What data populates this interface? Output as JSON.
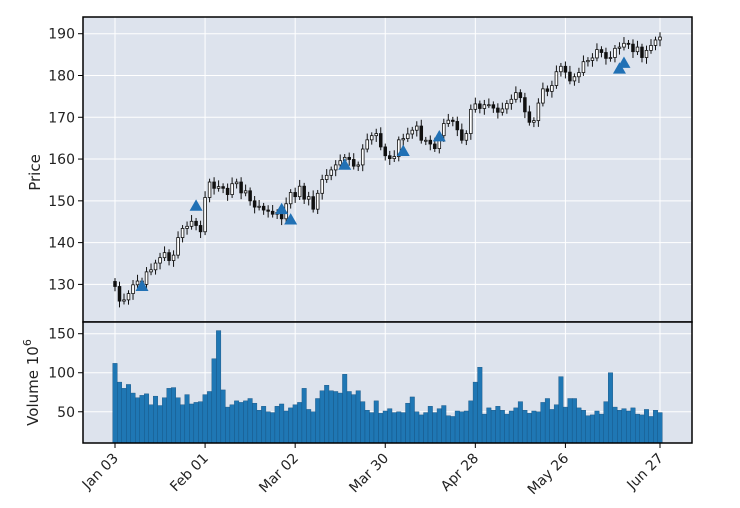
{
  "chart_data": {
    "type": "candlestick",
    "colors": {
      "panel_bg": "#dde3ed",
      "grid": "#ffffff",
      "axis": "#000000",
      "candle_edge": "#111111",
      "candle_up_fill": "#ffffff",
      "candle_down_fill": "#111111",
      "marker": "#2171b5",
      "volume_fill": "#1f77b4",
      "volume_edge": "#14507f"
    },
    "x_tick_labels": [
      "Jan 03",
      "Feb 01",
      "Mar 02",
      "Mar 30",
      "Apr 28",
      "May 26",
      "Jun 27"
    ],
    "x_tick_indices": [
      0,
      20,
      40,
      60,
      80,
      100,
      121
    ],
    "price_panel": {
      "ylabel": "Price",
      "ylim": [
        121,
        194
      ],
      "yticks": [
        130,
        140,
        150,
        160,
        170,
        180,
        190
      ]
    },
    "volume_panel": {
      "ylabel": "Volume",
      "scale_label": "10",
      "scale_exp": "6",
      "ylim": [
        10,
        165
      ],
      "yticks": [
        50,
        100,
        150
      ]
    },
    "series": {
      "close": [
        129.5,
        126.0,
        126.3,
        127.8,
        129.9,
        130.8,
        130.0,
        133.0,
        133.5,
        135.1,
        136.4,
        137.6,
        135.7,
        137.0,
        141.2,
        143.4,
        143.9,
        145.1,
        144.1,
        142.6,
        150.8,
        154.5,
        153.0,
        153.4,
        153.0,
        151.5,
        154.1,
        154.5,
        151.9,
        152.4,
        150.0,
        148.5,
        148.7,
        147.8,
        147.5,
        146.8,
        147.2,
        145.7,
        149.3,
        152.0,
        151.0,
        153.5,
        150.4,
        151.0,
        148.0,
        151.8,
        155.1,
        156.1,
        157.4,
        158.6,
        159.6,
        160.4,
        159.9,
        158.3,
        158.6,
        162.4,
        164.6,
        165.6,
        166.1,
        162.9,
        160.8,
        160.1,
        160.6,
        164.6,
        164.9,
        166.0,
        166.9,
        167.9,
        164.5,
        164.5,
        163.6,
        162.5,
        165.6,
        168.5,
        169.3,
        169.0,
        167.0,
        164.5,
        166.1,
        171.9,
        173.2,
        172.1,
        173.0,
        173.0,
        172.2,
        171.2,
        172.0,
        173.3,
        174.3,
        175.9,
        174.7,
        171.3,
        168.8,
        169.2,
        173.4,
        176.8,
        176.2,
        177.6,
        180.9,
        182.2,
        180.8,
        178.7,
        179.7,
        180.7,
        183.3,
        183.6,
        184.2,
        186.2,
        185.5,
        184.1,
        184.3,
        186.5,
        186.8,
        187.7,
        187.5,
        185.7,
        186.8,
        184.3,
        186.0,
        187.2,
        188.5,
        189.2
      ],
      "volume": [
        112,
        88,
        80,
        85,
        74,
        68,
        71,
        73,
        59,
        70,
        58,
        68,
        80,
        81,
        68,
        59,
        72,
        60,
        62,
        63,
        72,
        76,
        118,
        154,
        78,
        56,
        59,
        64,
        62,
        64,
        67,
        61,
        52,
        57,
        50,
        49,
        57,
        60,
        51,
        55,
        59,
        62,
        80,
        53,
        50,
        67,
        77,
        84,
        77,
        76,
        74,
        98,
        76,
        72,
        77,
        63,
        52,
        49,
        64,
        48,
        51,
        54,
        49,
        50,
        49,
        61,
        69,
        50,
        46,
        49,
        57,
        49,
        54,
        58,
        45,
        44,
        51,
        50,
        51,
        64,
        88,
        107,
        47,
        55,
        52,
        57,
        52,
        47,
        51,
        55,
        63,
        52,
        48,
        51,
        50,
        62,
        67,
        53,
        59,
        95,
        56,
        67,
        67,
        55,
        52,
        45,
        46,
        51,
        47,
        63,
        100,
        56,
        52,
        54,
        51,
        55,
        47,
        46,
        53,
        44,
        52,
        49
      ]
    },
    "markers": {
      "indices": [
        6,
        18,
        37,
        39,
        51,
        64,
        72,
        112,
        113
      ],
      "values": [
        129.6,
        148.8,
        148.0,
        145.5,
        158.6,
        161.9,
        165.4,
        181.6,
        183.0
      ]
    }
  }
}
